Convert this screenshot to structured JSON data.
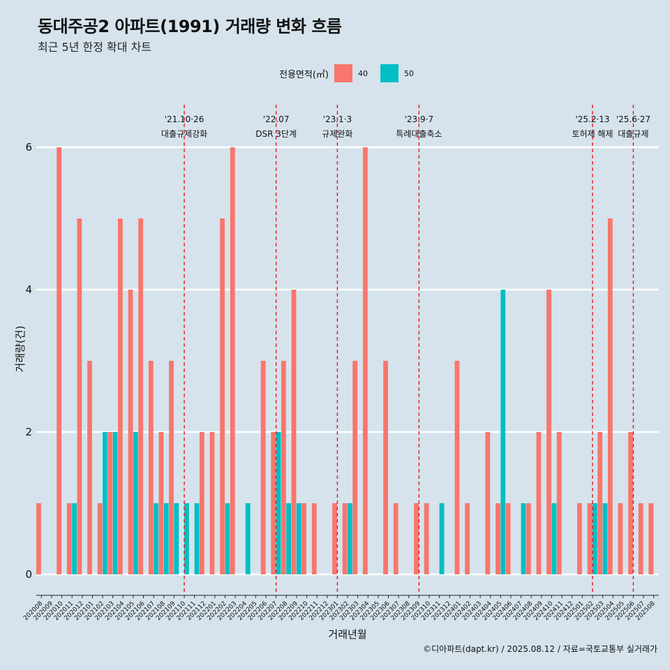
{
  "header": {
    "title": "동대주공2 아파트(1991) 거래량 변화 흐름",
    "subtitle": "최근 5년 한정 확대 차트"
  },
  "legend": {
    "title": "전용면적(㎡)",
    "items": [
      {
        "label": "40",
        "color": "#f8766d"
      },
      {
        "label": "50",
        "color": "#00bfc4"
      }
    ]
  },
  "caption": "©디아파트(dapt.kr) / 2025.08.12 / 자료=국토교통부 실거래가",
  "chart_data": {
    "type": "bar",
    "xlabel": "거래년월",
    "ylabel": "거래량(건)",
    "ylim": [
      0,
      6.5
    ],
    "yticks": [
      0,
      2,
      4,
      6
    ],
    "grid": true,
    "legend_position": "top",
    "categories": [
      "202008",
      "202009",
      "202010",
      "202011",
      "202012",
      "202101",
      "202102",
      "202103",
      "202104",
      "202105",
      "202106",
      "202107",
      "202108",
      "202109",
      "202110",
      "202111",
      "202112",
      "202201",
      "202202",
      "202203",
      "202204",
      "202205",
      "202206",
      "202207",
      "202208",
      "202209",
      "202210",
      "202211",
      "202212",
      "202301",
      "202302",
      "202303",
      "202304",
      "202305",
      "202306",
      "202307",
      "202308",
      "202309",
      "202310",
      "202311",
      "202312",
      "202401",
      "202402",
      "202403",
      "202404",
      "202405",
      "202406",
      "202407",
      "202408",
      "202409",
      "202410",
      "202411",
      "202412",
      "202501",
      "202502",
      "202503",
      "202504",
      "202505",
      "202506",
      "202507",
      "202508"
    ],
    "series": [
      {
        "name": "40",
        "color": "#f8766d",
        "values": [
          1,
          0,
          6,
          1,
          5,
          3,
          1,
          2,
          5,
          4,
          5,
          3,
          2,
          3,
          0,
          0,
          2,
          2,
          5,
          6,
          0,
          0,
          3,
          2,
          3,
          4,
          1,
          1,
          0,
          1,
          1,
          3,
          6,
          0,
          3,
          1,
          0,
          1,
          1,
          0,
          0,
          3,
          1,
          0,
          2,
          1,
          1,
          0,
          1,
          2,
          4,
          2,
          0,
          1,
          1,
          2,
          5,
          1,
          2,
          1,
          1
        ]
      },
      {
        "name": "50",
        "color": "#00bfc4",
        "values": [
          0,
          0,
          0,
          1,
          0,
          0,
          2,
          2,
          0,
          2,
          0,
          1,
          1,
          1,
          1,
          1,
          0,
          0,
          1,
          0,
          1,
          0,
          0,
          2,
          1,
          1,
          0,
          0,
          0,
          0,
          1,
          0,
          0,
          0,
          0,
          0,
          0,
          0,
          0,
          1,
          0,
          0,
          0,
          0,
          0,
          4,
          0,
          1,
          0,
          0,
          1,
          0,
          0,
          0,
          1,
          1,
          0,
          0,
          0,
          0,
          0
        ]
      }
    ],
    "events": [
      {
        "index": 14.5,
        "date": "'21.10·26",
        "label": "대출규제강화"
      },
      {
        "index": 23.5,
        "date": "'22.07",
        "label": "DSR 3단계"
      },
      {
        "index": 29.5,
        "date": "'23.1·3",
        "label": "규제완화"
      },
      {
        "index": 37.5,
        "date": "'23.9·7",
        "label": "특례대출축소"
      },
      {
        "index": 54.5,
        "date": "'25.2·13",
        "label": "토허제 해제"
      },
      {
        "index": 58.5,
        "date": "'25.6·27",
        "label": "대출규제"
      }
    ]
  }
}
